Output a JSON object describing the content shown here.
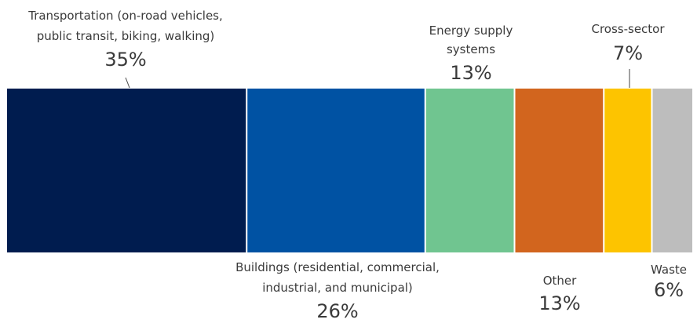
{
  "chart_data": {
    "type": "bar",
    "subtype": "stacked-100-horizontal",
    "categories": [
      "Transportation (on-road vehicles, public transit, biking, walking)",
      "Buildings (residential, commercial, industrial, and municipal)",
      "Energy supply systems",
      "Other",
      "Cross-sector",
      "Waste"
    ],
    "values": [
      35,
      26,
      13,
      13,
      7,
      6
    ],
    "unit": "%",
    "colors": [
      "#001C4F",
      "#0052A3",
      "#70C590",
      "#D2651E",
      "#FDC400",
      "#BDBDBD"
    ],
    "labels": [
      {
        "lines": [
          "Transportation (on-road vehicles,",
          "public transit, biking, walking)"
        ],
        "pct": "35%",
        "position": "above"
      },
      {
        "lines": [
          "Buildings (residential, commercial,",
          "industrial, and municipal)"
        ],
        "pct": "26%",
        "position": "below"
      },
      {
        "lines": [
          "Energy supply",
          "systems"
        ],
        "pct": "13%",
        "position": "above"
      },
      {
        "lines": [
          "Other"
        ],
        "pct": "13%",
        "position": "below"
      },
      {
        "lines": [
          "Cross-sector"
        ],
        "pct": "7%",
        "position": "above"
      },
      {
        "lines": [
          "Waste"
        ],
        "pct": "6%",
        "position": "below"
      }
    ]
  }
}
